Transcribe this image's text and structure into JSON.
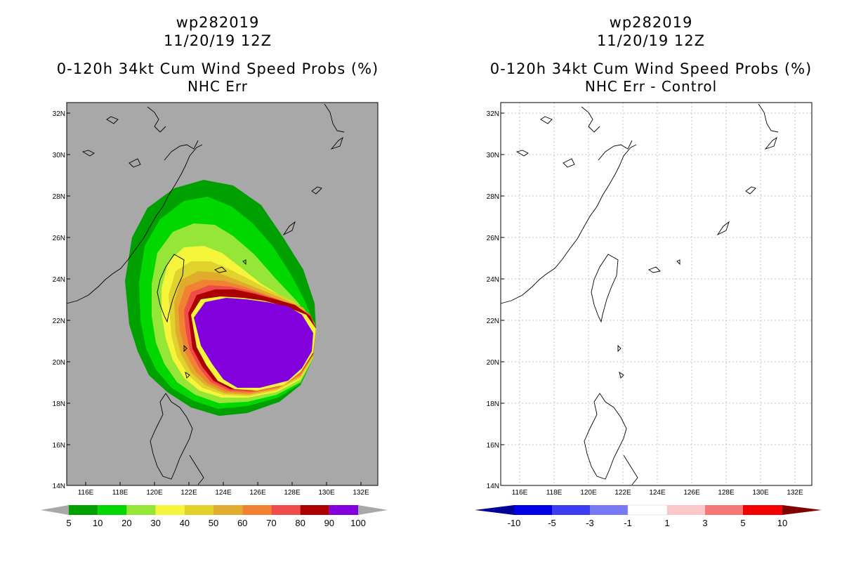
{
  "left_panel": {
    "title_lines": [
      "wp282019",
      "11/20/19 12Z",
      "0-120h 34kt Cum Wind Speed Probs (%)",
      "NHC Err"
    ],
    "colorbar": {
      "labels": [
        "5",
        "10",
        "20",
        "30",
        "40",
        "50",
        "60",
        "70",
        "80",
        "90",
        "100"
      ],
      "colors": [
        "#00a000",
        "#00d800",
        "#96e637",
        "#f5f53c",
        "#e1d22d",
        "#e1ab2d",
        "#f08232",
        "#f04b4b",
        "#aa0000",
        "#8200dc"
      ],
      "end_color": "#a8a8a8"
    }
  },
  "right_panel": {
    "title_lines": [
      "wp282019",
      "11/20/19 12Z",
      "0-120h 34kt Cum Wind Speed Probs (%)",
      "NHC Err - Control"
    ],
    "colorbar": {
      "labels": [
        "-10",
        "-5",
        "-3",
        "-1",
        "1",
        "3",
        "5",
        "10"
      ],
      "colors": [
        "#0000e6",
        "#3c3cf0",
        "#7878f5",
        "#c8c8fa",
        "#ffffff",
        "#fac8c8",
        "#f57878",
        "#f00000"
      ],
      "end_low_color": "#000096",
      "end_high_color": "#800000"
    }
  },
  "axes": {
    "lat_labels": [
      "32N",
      "30N",
      "28N",
      "26N",
      "24N",
      "22N",
      "20N",
      "18N",
      "16N",
      "14N"
    ],
    "lon_labels": [
      "116E",
      "118E",
      "120E",
      "122E",
      "124E",
      "126E",
      "128E",
      "130E",
      "132E"
    ]
  },
  "colors": {
    "land_bg": "#a8a8a8",
    "ocean_bg": "#ffffff"
  }
}
